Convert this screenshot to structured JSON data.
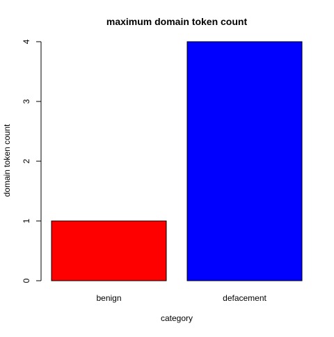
{
  "chart_data": {
    "type": "bar",
    "title": "maximum domain token count",
    "xlabel": "category",
    "ylabel": "domain token count",
    "categories": [
      "benign",
      "defacement"
    ],
    "values": [
      1,
      4
    ],
    "colors": [
      "#ff0000",
      "#0000ff"
    ],
    "bar_border_color": "#000000",
    "ylim": [
      0,
      4
    ],
    "yticks": [
      "0",
      "1",
      "2",
      "3",
      "4"
    ],
    "grid": false,
    "legend": "none"
  }
}
